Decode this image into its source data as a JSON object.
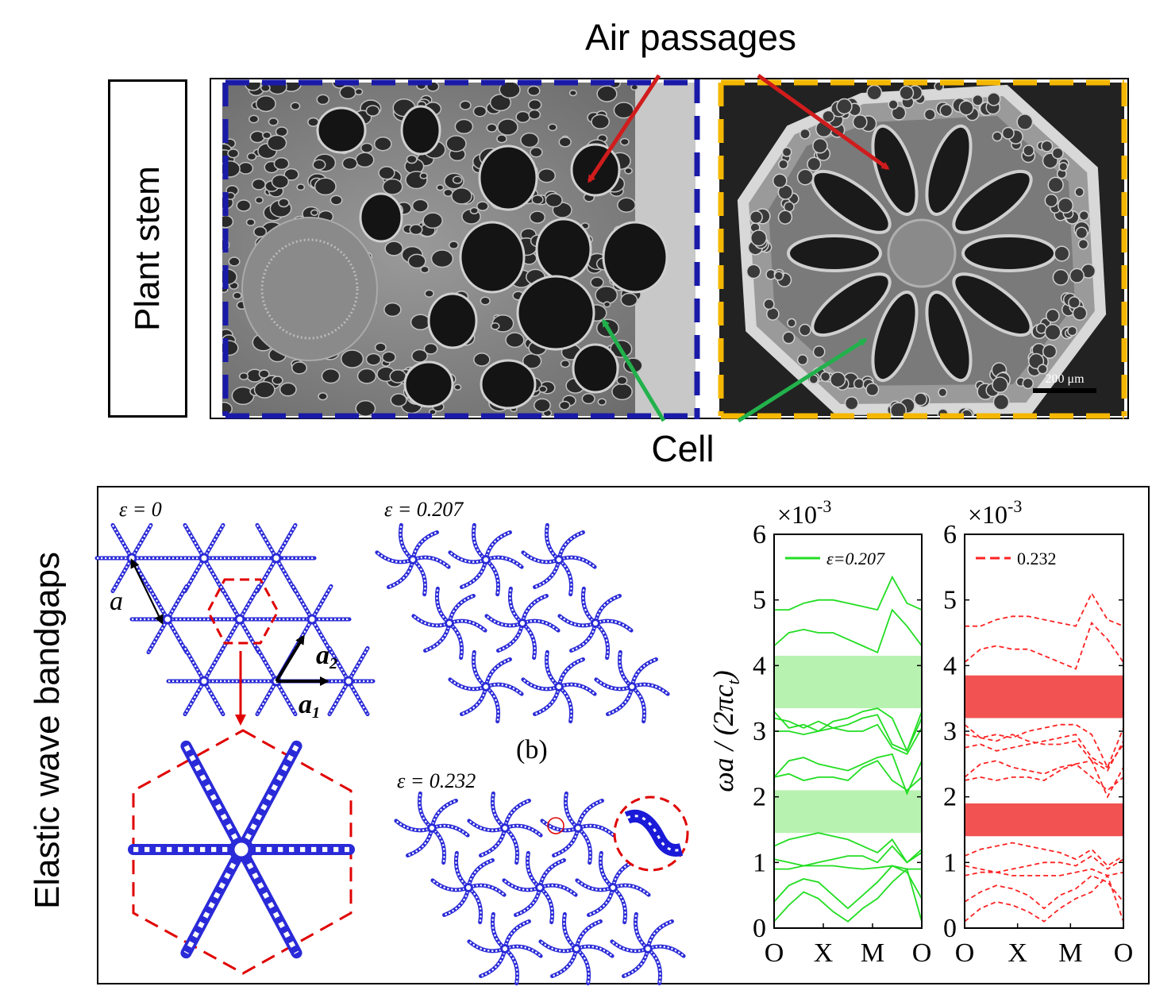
{
  "top": {
    "air_passages_label": "Air passages",
    "cell_label": "Cell",
    "plant_stem_label": "Plant stem",
    "scale_bar": "200 μm"
  },
  "colors": {
    "blue_dash": "#1a1aa8",
    "yellow_dash": "#f5b700",
    "red_arrow": "#d01c1c",
    "green_arrow": "#22b14c",
    "lattice_blue": "#2a2ad8",
    "gap_green": "#b8f2b0",
    "gap_red": "#f25252"
  },
  "bottom": {
    "elastic_label": "Elastic wave bandgaps",
    "eps0_label": "ε = 0",
    "eps1_label": "ε = 0.207",
    "eps2_label": "ε = 0.232",
    "a_label": "a",
    "a1_label": "a",
    "a1_sub": "1",
    "a2_label": "a",
    "a2_sub": "2",
    "panel_b": "(b)"
  },
  "chart_data": [
    {
      "type": "line",
      "ylabel": "ωa / (2πc",
      "ylabel_sub": "t",
      "ylabel_end": ")",
      "multiplier": "×10",
      "multiplier_exp": "-3",
      "xticks": [
        "O",
        "X",
        "M",
        "O"
      ],
      "yticks": [
        "0",
        "1",
        "2",
        "3",
        "4",
        "5",
        "6"
      ],
      "ylim": [
        0,
        6
      ],
      "legend": "ε=0.207",
      "line_style": "solid",
      "color": "#22dd22",
      "bandgaps": [
        [
          1.45,
          2.1
        ],
        [
          3.35,
          4.15
        ]
      ],
      "bands": [
        [
          0.1,
          0.35,
          0.55,
          0.45,
          0.25,
          0.1,
          0.3,
          0.45,
          0.7,
          0.9,
          0.1
        ],
        [
          0.4,
          0.65,
          0.75,
          0.7,
          0.5,
          0.3,
          0.5,
          0.7,
          0.95,
          0.85,
          0.45
        ],
        [
          0.9,
          0.9,
          0.95,
          0.95,
          0.95,
          0.92,
          0.9,
          0.92,
          0.95,
          0.9,
          0.9
        ],
        [
          1.05,
          1.0,
          0.95,
          1.0,
          1.05,
          1.1,
          1.1,
          1.0,
          1.25,
          1.0,
          1.2
        ],
        [
          1.25,
          1.35,
          1.4,
          1.45,
          1.4,
          1.35,
          1.25,
          1.15,
          1.35,
          1.0,
          1.15
        ],
        [
          2.3,
          2.35,
          2.25,
          2.3,
          2.3,
          2.25,
          2.45,
          2.55,
          2.25,
          2.1,
          2.3
        ],
        [
          2.3,
          2.55,
          2.6,
          2.5,
          2.45,
          2.4,
          2.5,
          2.6,
          2.65,
          2.05,
          2.55
        ],
        [
          3.0,
          3.0,
          2.95,
          3.0,
          3.05,
          3.1,
          3.2,
          3.25,
          2.8,
          2.7,
          3.2
        ],
        [
          3.2,
          3.15,
          3.05,
          3.15,
          3.05,
          3.0,
          3.0,
          3.1,
          2.75,
          2.65,
          3.05
        ],
        [
          3.3,
          3.05,
          3.1,
          3.0,
          3.15,
          3.2,
          3.3,
          3.35,
          3.2,
          2.7,
          3.3
        ],
        [
          4.3,
          4.5,
          4.55,
          4.5,
          4.5,
          4.4,
          4.3,
          4.2,
          4.85,
          4.6,
          4.3
        ],
        [
          4.85,
          4.85,
          4.95,
          5.0,
          5.0,
          4.95,
          4.9,
          4.85,
          5.35,
          4.95,
          4.85
        ]
      ]
    },
    {
      "type": "line",
      "multiplier": "×10",
      "multiplier_exp": "-3",
      "xticks": [
        "O",
        "X",
        "M",
        "O"
      ],
      "yticks": [
        "0",
        "1",
        "2",
        "3",
        "4",
        "5",
        "6"
      ],
      "ylim": [
        0,
        6
      ],
      "legend": "0.232",
      "line_style": "dashed",
      "color": "#ff2222",
      "bandgaps": [
        [
          1.4,
          1.9
        ],
        [
          3.2,
          3.85
        ]
      ],
      "bands": [
        [
          0.1,
          0.3,
          0.4,
          0.35,
          0.25,
          0.1,
          0.3,
          0.45,
          0.55,
          0.8,
          0.1
        ],
        [
          0.4,
          0.55,
          0.65,
          0.6,
          0.5,
          0.3,
          0.5,
          0.6,
          0.8,
          0.7,
          0.4
        ],
        [
          0.8,
          0.85,
          0.85,
          0.8,
          0.8,
          0.8,
          0.8,
          0.85,
          0.9,
          0.8,
          0.85
        ],
        [
          0.95,
          0.9,
          0.85,
          0.9,
          0.95,
          1.0,
          1.0,
          0.95,
          1.1,
          0.9,
          1.05
        ],
        [
          1.1,
          1.2,
          1.25,
          1.3,
          1.25,
          1.2,
          1.15,
          1.05,
          1.2,
          0.95,
          1.1
        ],
        [
          2.25,
          2.3,
          2.25,
          2.3,
          2.3,
          2.25,
          2.4,
          2.5,
          2.3,
          2.1,
          2.3
        ],
        [
          2.3,
          2.5,
          2.55,
          2.45,
          2.4,
          2.35,
          2.45,
          2.5,
          2.55,
          2.0,
          2.45
        ],
        [
          2.75,
          2.8,
          2.7,
          2.75,
          2.8,
          2.85,
          2.9,
          2.95,
          2.6,
          2.45,
          2.8
        ],
        [
          2.95,
          2.9,
          2.85,
          2.95,
          2.85,
          2.8,
          2.8,
          2.85,
          2.55,
          2.4,
          2.85
        ],
        [
          3.1,
          2.9,
          2.95,
          2.9,
          3.0,
          3.05,
          3.1,
          3.1,
          2.95,
          2.45,
          3.05
        ],
        [
          4.05,
          4.25,
          4.3,
          4.25,
          4.25,
          4.15,
          4.05,
          3.95,
          4.65,
          4.4,
          4.05
        ],
        [
          4.6,
          4.6,
          4.7,
          4.75,
          4.75,
          4.7,
          4.65,
          4.6,
          5.1,
          4.7,
          4.6
        ]
      ]
    }
  ]
}
